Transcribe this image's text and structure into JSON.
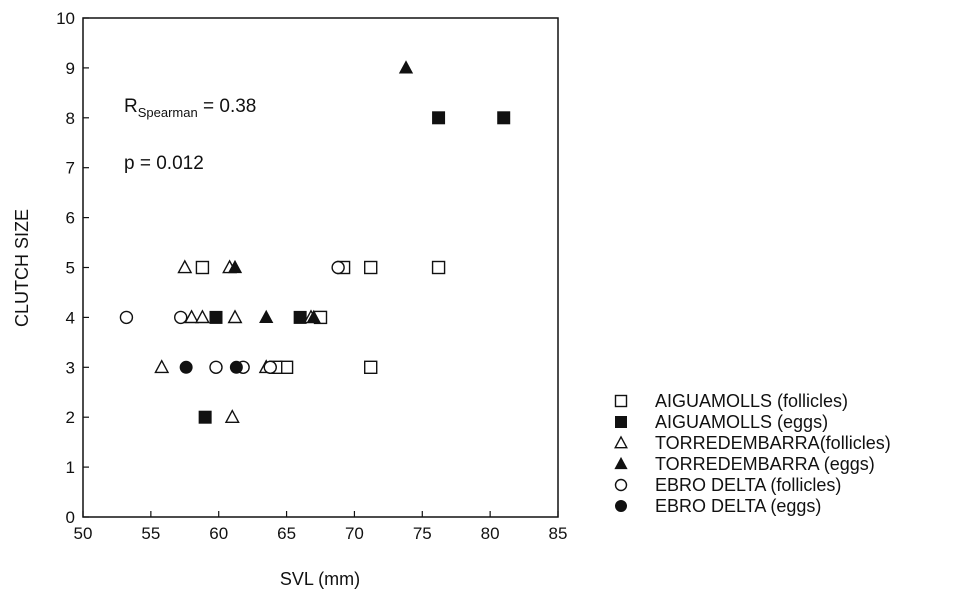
{
  "chart_data": {
    "type": "scatter",
    "title": "",
    "xlabel": "SVL (mm)",
    "ylabel": "CLUTCH SIZE",
    "xlim": [
      50,
      85
    ],
    "ylim": [
      0,
      10
    ],
    "xticks": [
      50,
      55,
      60,
      65,
      70,
      75,
      80,
      85
    ],
    "yticks": [
      0,
      1,
      2,
      3,
      4,
      5,
      6,
      7,
      8,
      9,
      10
    ],
    "grid": false,
    "legend_position": "right, outside plot",
    "annotations": {
      "r_main": "R",
      "r_sub": "Spearman",
      "r_value": " = 0.38",
      "p_text": "p = 0.012"
    },
    "series": [
      {
        "name": "AIGUAMOLLS (follicles)",
        "marker": "square-open",
        "points": [
          [
            58.8,
            5
          ],
          [
            69.2,
            5
          ],
          [
            71.2,
            5
          ],
          [
            76.2,
            5
          ],
          [
            67.5,
            4
          ],
          [
            65,
            3
          ],
          [
            71.2,
            3
          ],
          [
            64.2,
            3
          ]
        ]
      },
      {
        "name": "AIGUAMOLLS (eggs)",
        "marker": "square-filled",
        "points": [
          [
            76.2,
            8
          ],
          [
            81,
            8
          ],
          [
            59.8,
            4
          ],
          [
            66,
            4
          ],
          [
            59,
            2
          ]
        ]
      },
      {
        "name": "TORREDEMBARRA(follicles)",
        "marker": "triangle-open",
        "points": [
          [
            57.5,
            5
          ],
          [
            60.8,
            5
          ],
          [
            58,
            4
          ],
          [
            58.8,
            4
          ],
          [
            61.2,
            4
          ],
          [
            66.8,
            4
          ],
          [
            55.8,
            3
          ],
          [
            63.5,
            3
          ],
          [
            61,
            2
          ]
        ]
      },
      {
        "name": "TORREDEMBARRA (eggs)",
        "marker": "triangle-filled",
        "points": [
          [
            73.8,
            9
          ],
          [
            61.2,
            5
          ],
          [
            63.5,
            4
          ],
          [
            67,
            4
          ]
        ]
      },
      {
        "name": "EBRO DELTA (follicles)",
        "marker": "circle-open",
        "points": [
          [
            68.8,
            5
          ],
          [
            53.2,
            4
          ],
          [
            57.2,
            4
          ],
          [
            59.8,
            3
          ],
          [
            61.8,
            3
          ],
          [
            63.8,
            3
          ]
        ]
      },
      {
        "name": "EBRO DELTA (eggs)",
        "marker": "circle-filled",
        "points": [
          [
            57.6,
            3
          ],
          [
            61.3,
            3
          ]
        ]
      }
    ]
  }
}
